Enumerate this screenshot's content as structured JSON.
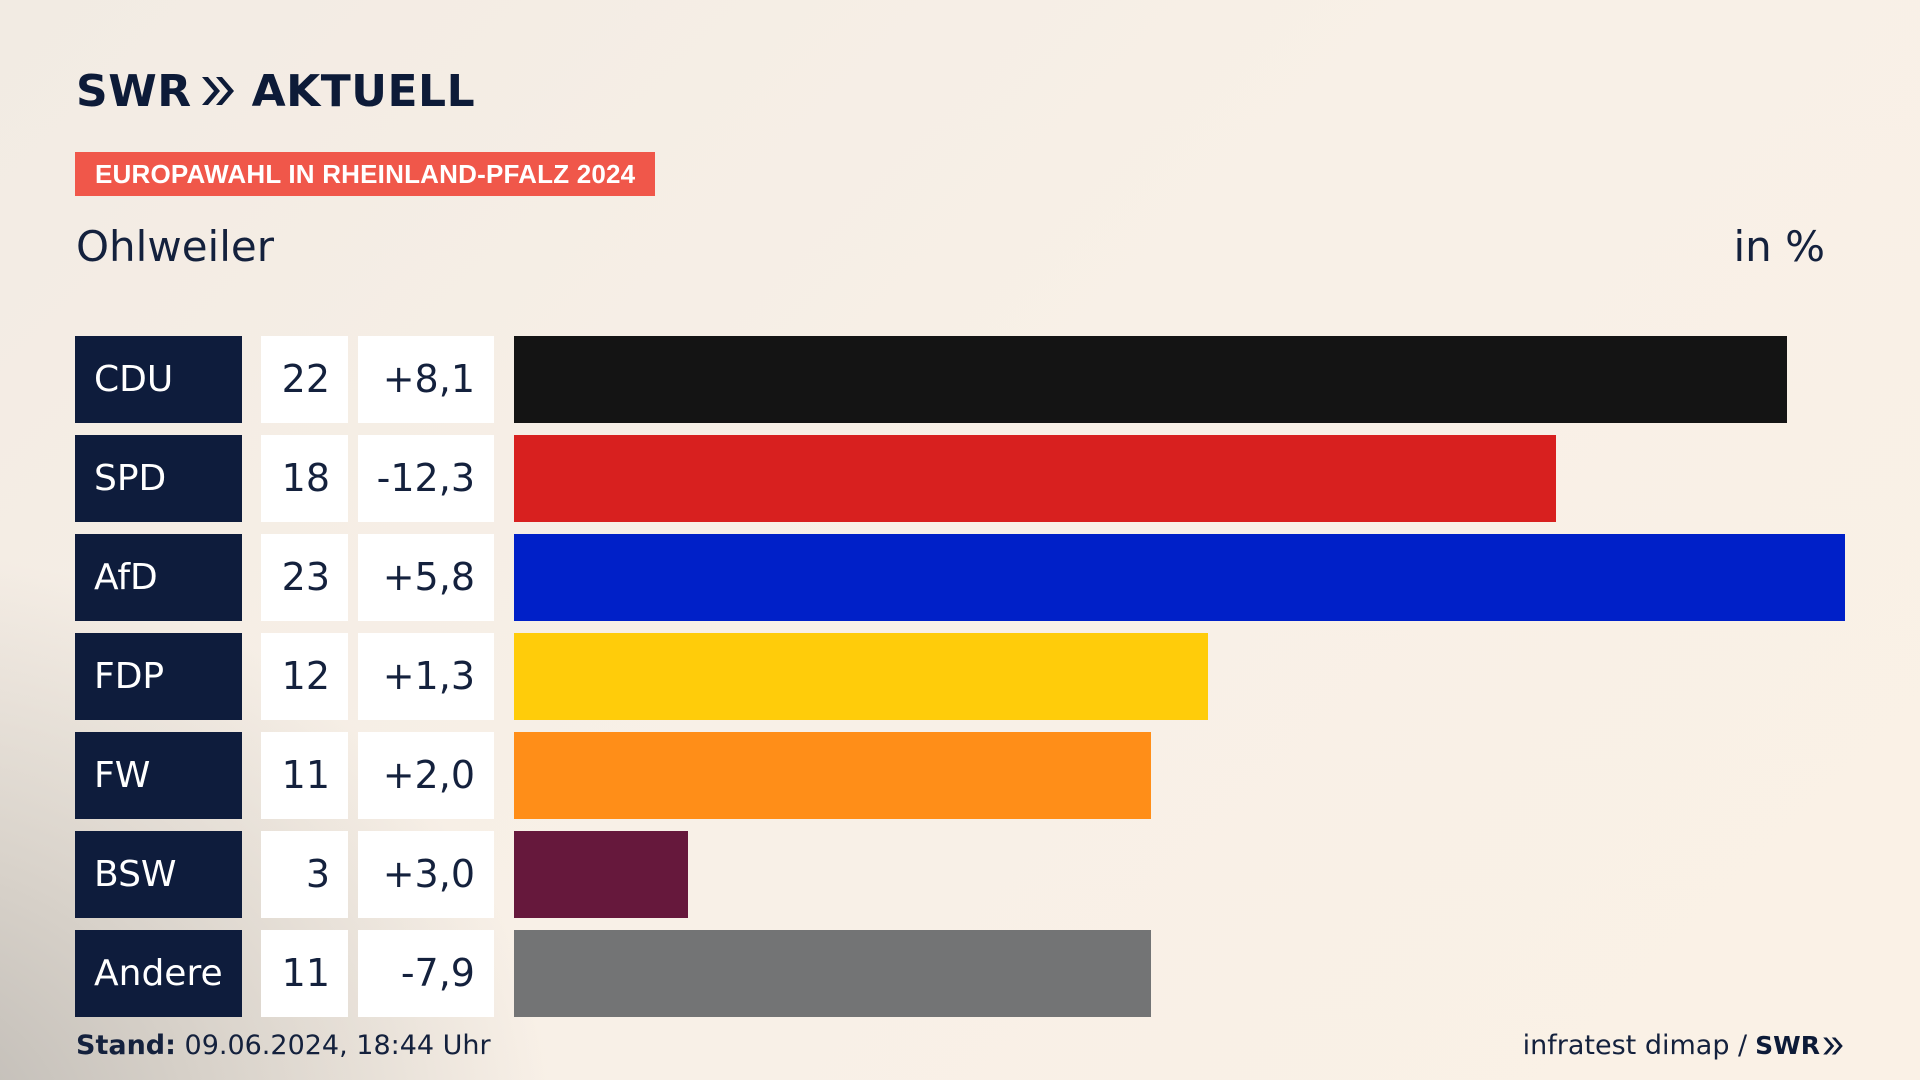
{
  "header": {
    "logo_left": "SWR",
    "logo_right": "AKTUELL",
    "badge": "EUROPAWAHL IN RHEINLAND-PFALZ 2024",
    "subtitle": "Ohlweiler",
    "unit": "in %"
  },
  "chart_data": {
    "type": "bar",
    "orientation": "horizontal",
    "categories": [
      "CDU",
      "SPD",
      "AfD",
      "FDP",
      "FW",
      "BSW",
      "Andere"
    ],
    "values": [
      22,
      18,
      23,
      12,
      11,
      3,
      11
    ],
    "diffs": [
      "+8,1",
      "-12,3",
      "+5,8",
      "+1,3",
      "+2,0",
      "+3,0",
      "-7,9"
    ],
    "colors": [
      "#141414",
      "#d8201f",
      "#0020c8",
      "#ffcc0a",
      "#ff8e18",
      "#66183c",
      "#737475"
    ],
    "xlim": [
      0,
      23
    ],
    "grid": false
  },
  "footer": {
    "stand_label": "Stand:",
    "stand_value": "09.06.2024, 18:44 Uhr",
    "source": "infratest dimap /",
    "source_logo": "SWR"
  }
}
